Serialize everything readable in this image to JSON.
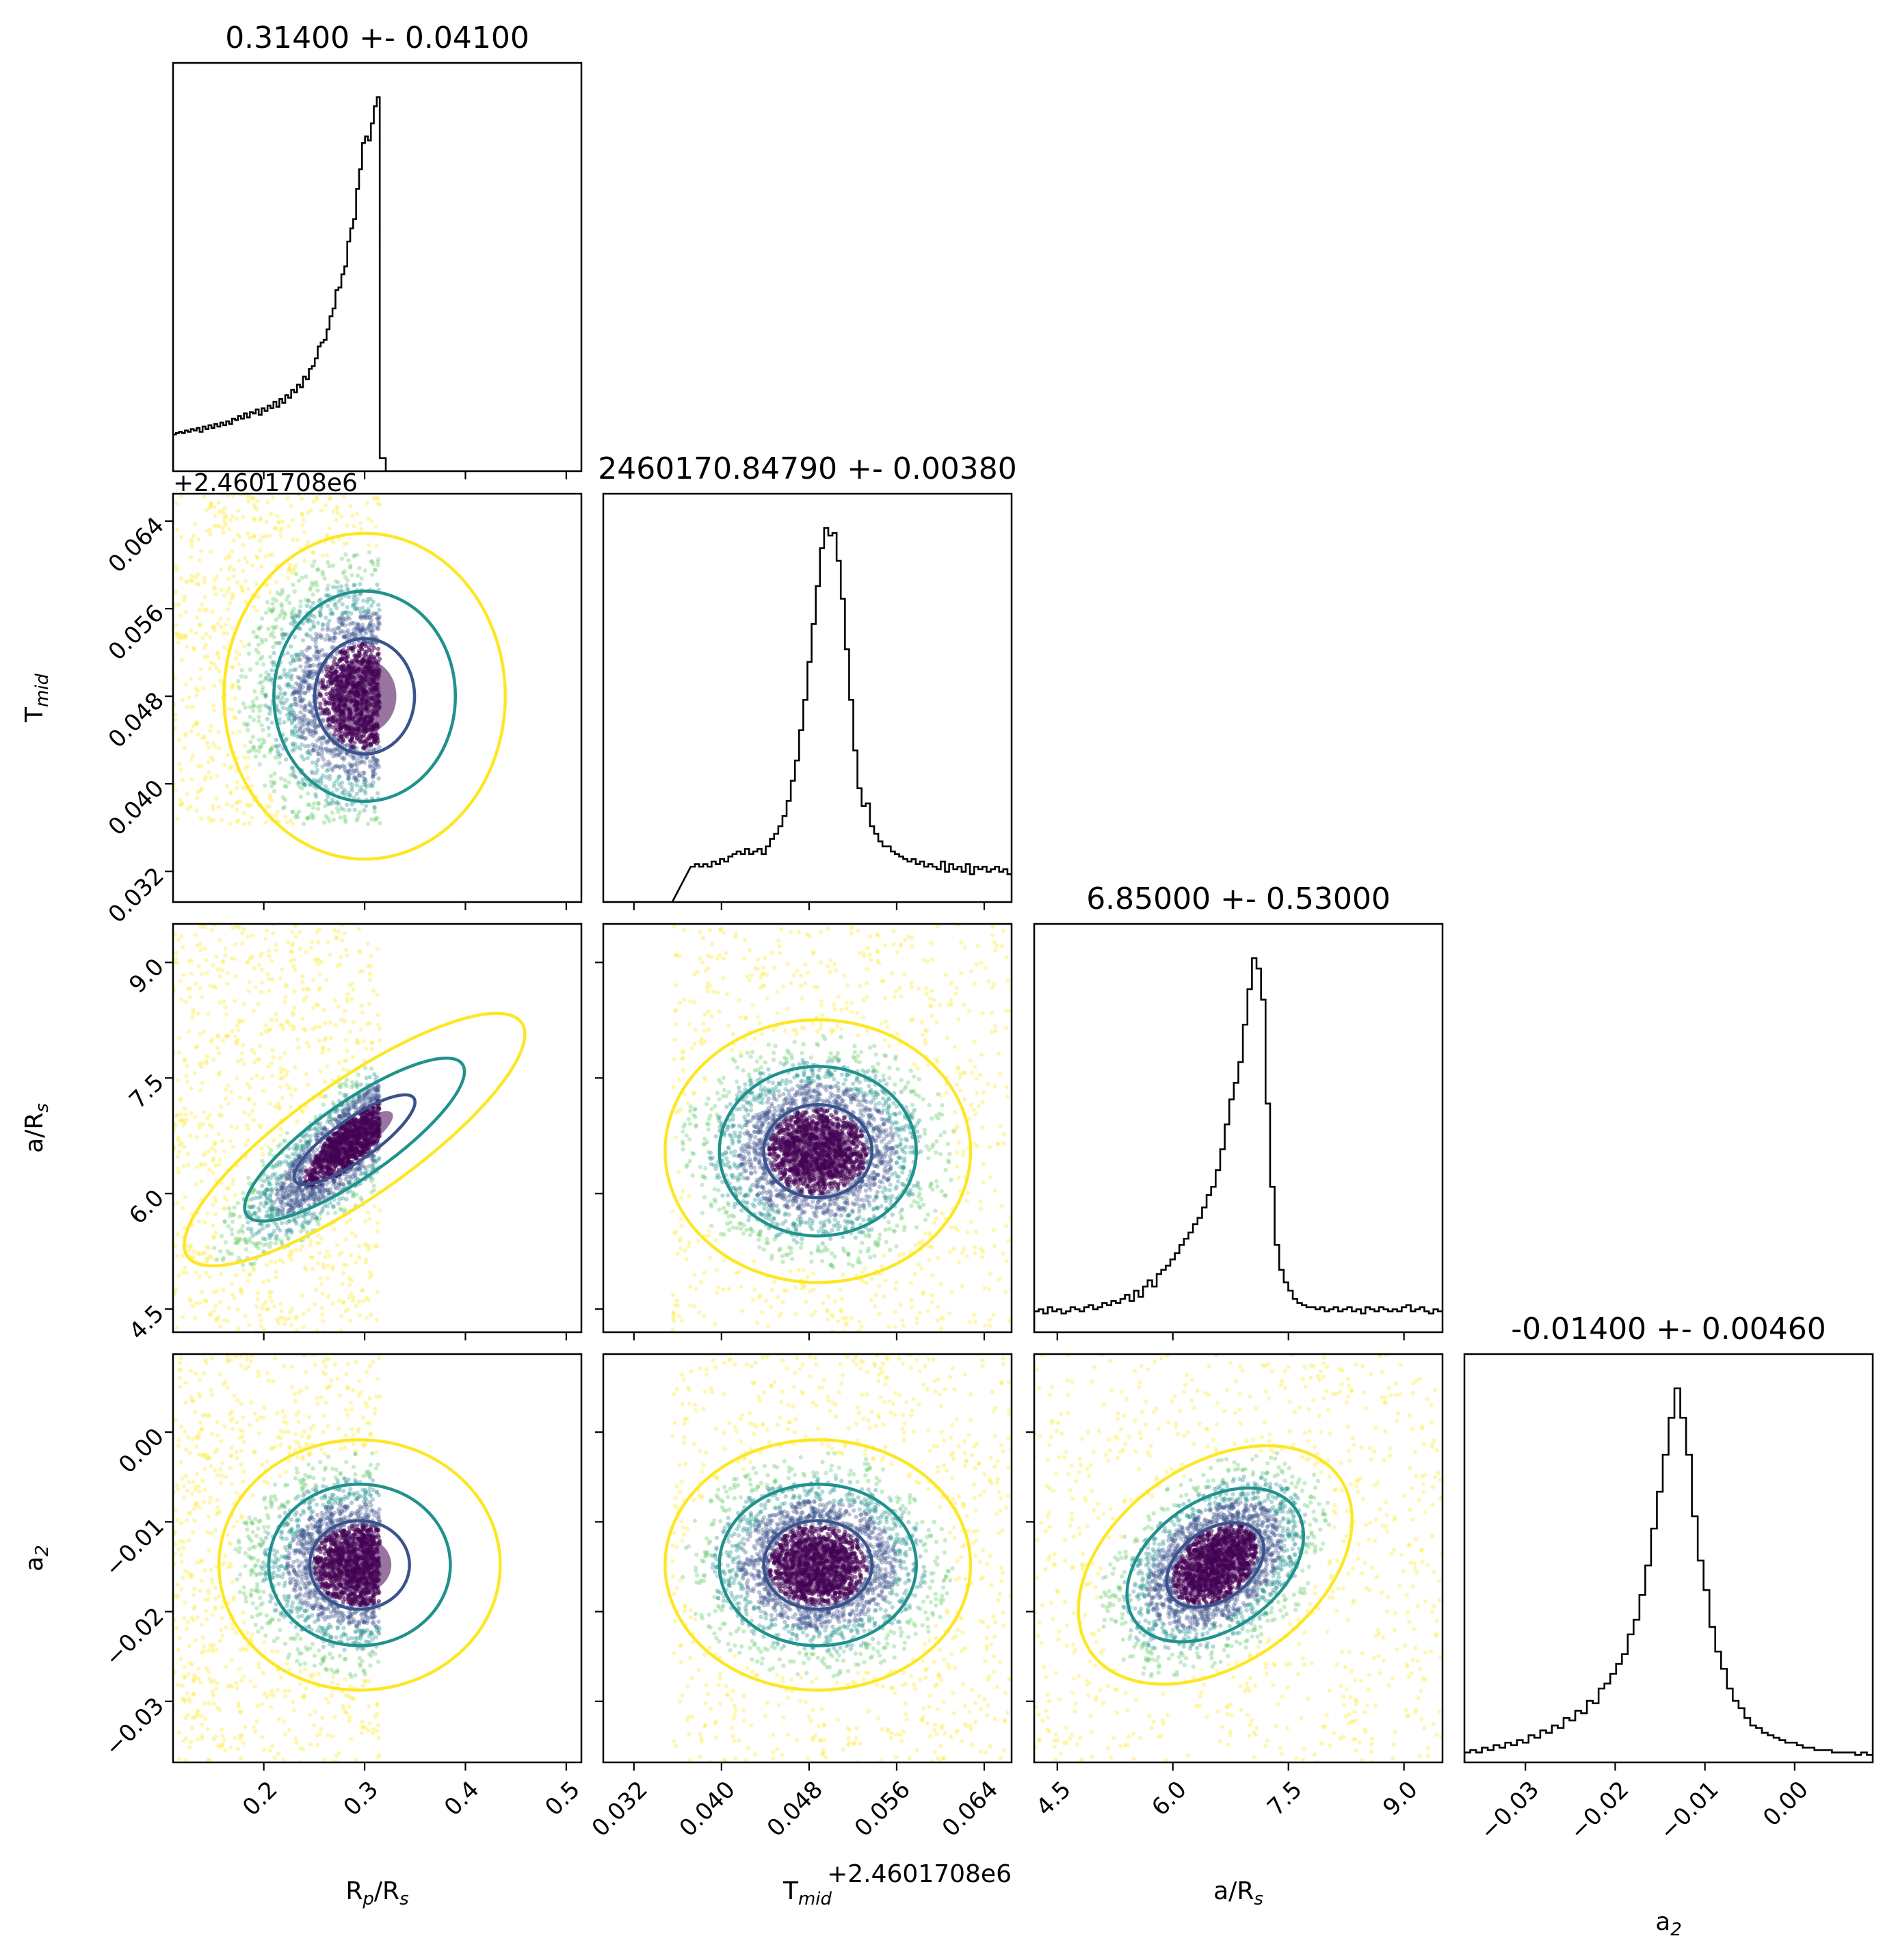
{
  "chart_data": {
    "type": "scatter",
    "title": "",
    "subplot": "corner",
    "parameters": [
      {
        "key": "rp",
        "label": "R",
        "sub": "p",
        "suffix": "/R",
        "sub2": "s",
        "range": [
          0.11,
          0.515
        ],
        "ticks": [
          "0.2",
          "0.3",
          "0.4",
          "0.5"
        ],
        "tick_values": [
          0.2,
          0.3,
          0.4,
          0.5
        ]
      },
      {
        "key": "tmid",
        "label": "T",
        "sub": "mid",
        "suffix": "",
        "sub2": "",
        "offset_label": "+2.4601708e6",
        "range": [
          0.0292,
          0.0665
        ],
        "ticks": [
          "0.032",
          "0.040",
          "0.048",
          "0.056",
          "0.064"
        ],
        "tick_values": [
          0.032,
          0.04,
          0.048,
          0.056,
          0.064
        ]
      },
      {
        "key": "ars",
        "label": "a/R",
        "sub": "s",
        "suffix": "",
        "sub2": "",
        "range": [
          4.2,
          9.5
        ],
        "ticks": [
          "4.5",
          "6.0",
          "7.5",
          "9.0"
        ],
        "tick_values": [
          4.5,
          6.0,
          7.5,
          9.0
        ]
      },
      {
        "key": "a2",
        "label": "a",
        "sub": "2",
        "suffix": "",
        "sub2": "",
        "range": [
          -0.0368,
          0.0087
        ],
        "ticks": [
          "−0.03",
          "−0.02",
          "−0.01",
          "0.00"
        ],
        "tick_values": [
          -0.03,
          -0.02,
          -0.01,
          0.0
        ]
      }
    ],
    "diagonal_titles": [
      "0.31400 +- 0.04100",
      "2460170.84790 +- 0.00380",
      "6.85000 +- 0.53000",
      "-0.01400 +- 0.00460"
    ],
    "histograms": [
      {
        "bin_edges": [
          0.11,
          0.315
        ],
        "counts": [
          28,
          29,
          30,
          29,
          31,
          30,
          32,
          31,
          33,
          30,
          34,
          32,
          35,
          33,
          36,
          34,
          37,
          35,
          38,
          36,
          40,
          39,
          42,
          40,
          44,
          41,
          45,
          44,
          47,
          43,
          48,
          46,
          50,
          48,
          53,
          49,
          55,
          52,
          58,
          56,
          62,
          60,
          66,
          64,
          72,
          70,
          78,
          80,
          86,
          95,
          98,
          100,
          108,
          118,
          124,
          138,
          140,
          150,
          156,
          175,
          185,
          192,
          215,
          230,
          250,
          255,
          252,
          265,
          278,
          285
        ],
        "tail": 10
      },
      {
        "bin_edges": [
          0.0292,
          0.0665
        ],
        "counts": [
          0,
          0,
          0,
          0,
          0,
          0,
          0,
          0,
          0,
          0,
          0,
          0,
          0,
          0,
          0,
          0,
          0,
          0,
          0,
          0,
          0,
          14,
          15,
          14,
          15,
          14,
          16,
          15,
          17,
          16,
          18,
          19,
          20,
          19,
          21,
          19,
          20,
          21,
          19,
          22,
          25,
          27,
          30,
          34,
          40,
          48,
          56,
          68,
          80,
          95,
          110,
          125,
          140,
          148,
          145,
          146,
          135,
          120,
          100,
          80,
          60,
          45,
          38,
          39,
          30,
          27,
          24,
          22,
          22,
          20,
          19,
          18,
          17,
          16,
          17,
          15,
          16,
          14,
          15,
          14,
          13,
          16,
          12,
          15,
          13,
          14,
          12,
          15,
          11,
          14,
          13,
          14,
          12,
          13,
          14,
          12,
          13,
          11
        ],
        "note": ""
      },
      {
        "bin_edges": [
          4.2,
          9.5
        ],
        "counts": [
          10,
          11,
          9,
          12,
          10,
          11,
          9,
          10,
          12,
          11,
          10,
          12,
          13,
          11,
          12,
          14,
          13,
          15,
          14,
          16,
          18,
          15,
          20,
          17,
          22,
          25,
          22,
          28,
          30,
          32,
          35,
          38,
          42,
          45,
          48,
          52,
          55,
          60,
          66,
          70,
          78,
          88,
          100,
          112,
          120,
          130,
          148,
          165,
          180,
          175,
          160,
          110,
          70,
          42,
          30,
          24,
          20,
          16,
          14,
          13,
          12,
          12,
          11,
          12,
          10,
          11,
          12,
          10,
          11,
          12,
          10,
          11,
          9,
          12,
          11,
          10,
          12,
          11,
          10,
          11,
          10,
          12,
          13,
          10,
          11,
          12,
          10,
          9,
          11,
          10
        ]
      },
      {
        "bin_edges": [
          -0.0368,
          0.0087
        ],
        "counts": [
          4,
          5,
          4,
          6,
          5,
          7,
          6,
          8,
          7,
          9,
          8,
          11,
          10,
          13,
          12,
          15,
          14,
          18,
          17,
          21,
          20,
          25,
          24,
          30,
          32,
          36,
          40,
          44,
          52,
          58,
          68,
          80,
          95,
          110,
          125,
          140,
          152,
          140,
          125,
          100,
          82,
          70,
          55,
          45,
          38,
          30,
          25,
          22,
          18,
          15,
          14,
          12,
          11,
          10,
          9,
          8,
          8,
          7,
          6,
          6,
          5,
          5,
          5,
          4,
          4,
          4,
          4,
          3,
          4,
          3
        ]
      }
    ],
    "contour_colors": [
      "#3b528b",
      "#21918c",
      "#fde725"
    ],
    "point_colormap": [
      "#440154",
      "#3b528b",
      "#21918c",
      "#5ec962",
      "#fde725"
    ],
    "pairs": [
      {
        "x": "rp",
        "y": "tmid",
        "center": [
          0.3,
          0.048
        ],
        "spread": [
          0.045,
          0.0048
        ],
        "corr": 0.0,
        "x_max": 0.315
      },
      {
        "x": "rp",
        "y": "ars",
        "center": [
          0.29,
          6.7
        ],
        "spread": [
          0.05,
          0.6
        ],
        "corr": 0.85,
        "x_max": 0.315
      },
      {
        "x": "tmid",
        "y": "ars",
        "center": [
          0.0488,
          6.55
        ],
        "spread": [
          0.0045,
          0.55
        ],
        "corr": 0.0
      },
      {
        "x": "rp",
        "y": "a2",
        "center": [
          0.295,
          -0.0148
        ],
        "spread": [
          0.045,
          0.0045
        ],
        "corr": 0.0,
        "x_max": 0.315
      },
      {
        "x": "tmid",
        "y": "a2",
        "center": [
          0.0488,
          -0.0148
        ],
        "spread": [
          0.0045,
          0.0045
        ],
        "corr": 0.0
      },
      {
        "x": "ars",
        "y": "a2",
        "center": [
          6.55,
          -0.0148
        ],
        "spread": [
          0.55,
          0.0045
        ],
        "corr": 0.4
      }
    ]
  }
}
